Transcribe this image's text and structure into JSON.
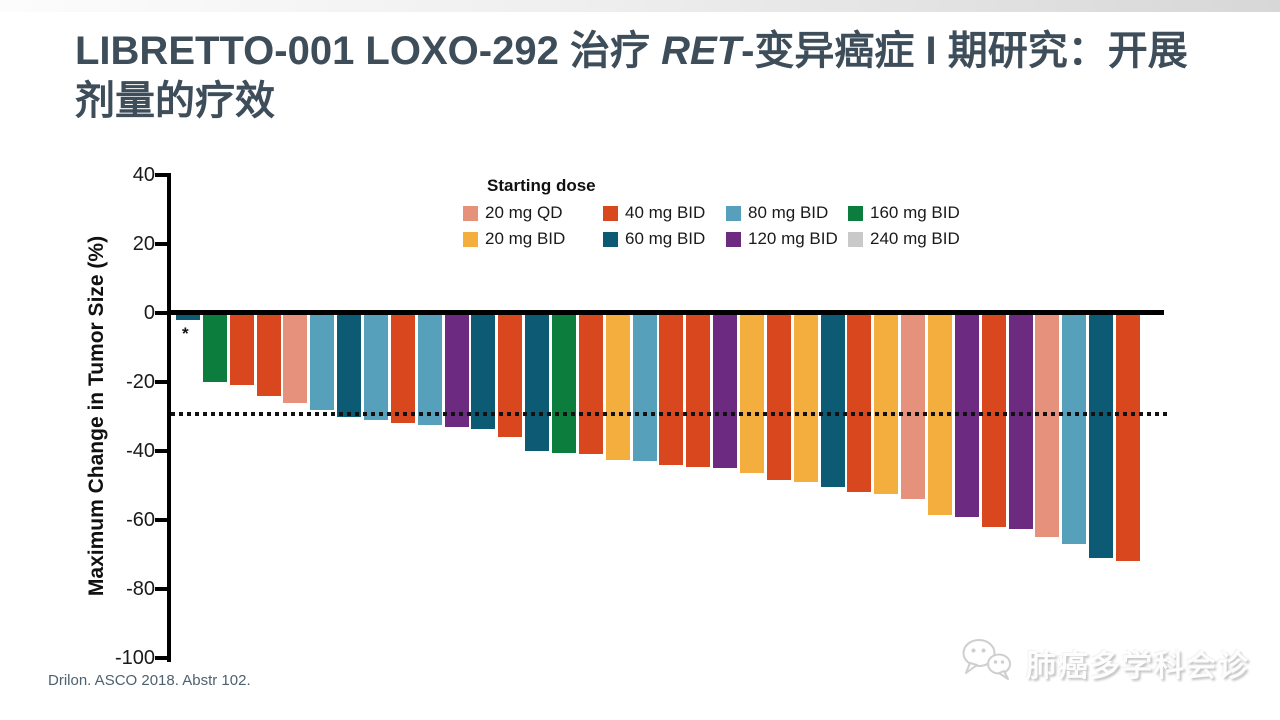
{
  "slide": {
    "title": {
      "prefix": "LIBRETTO-001 LOXO-292 治疗 ",
      "italic": "RET",
      "suffix": "-变异癌症 I 期研究：开展剂量的疗效"
    },
    "citation": "Drilon. ASCO 2018. Abstr 102.",
    "watermark": {
      "icon": "wechat-icon",
      "text": "肺癌多学科会诊"
    }
  },
  "chart_data": {
    "type": "bar",
    "subtype": "waterfall",
    "title": "",
    "xlabel": "",
    "ylabel": "Maximum Change in Tumor Size (%)",
    "ylim": [
      -100,
      40
    ],
    "yticks": [
      40,
      20,
      0,
      -20,
      -40,
      -60,
      -80,
      -100
    ],
    "reference_line_y": -30,
    "grid": false,
    "legend": {
      "title": "Starting dose",
      "position": "top",
      "order": [
        "20qd",
        "40",
        "80",
        "160",
        "20bid",
        "60",
        "120",
        "240"
      ]
    },
    "doses": {
      "20qd": {
        "label": "20 mg QD",
        "color": "#e5917c"
      },
      "20bid": {
        "label": "20 mg BID",
        "color": "#f3ae3d"
      },
      "40": {
        "label": "40 mg BID",
        "color": "#d9471e"
      },
      "60": {
        "label": "60 mg BID",
        "color": "#0d5a75"
      },
      "80": {
        "label": "80 mg BID",
        "color": "#57a0bc"
      },
      "120": {
        "label": "120 mg BID",
        "color": "#6c2b80"
      },
      "160": {
        "label": "160 mg BID",
        "color": "#0d7d3e"
      },
      "240": {
        "label": "240 mg BID",
        "color": "#c9c9c9"
      }
    },
    "bars": [
      {
        "dose": "60",
        "value": -2,
        "annotation": "*"
      },
      {
        "dose": "160",
        "value": -20
      },
      {
        "dose": "40",
        "value": -21
      },
      {
        "dose": "40",
        "value": -24
      },
      {
        "dose": "20qd",
        "value": -26
      },
      {
        "dose": "80",
        "value": -28
      },
      {
        "dose": "60",
        "value": -30
      },
      {
        "dose": "80",
        "value": -31
      },
      {
        "dose": "40",
        "value": -32
      },
      {
        "dose": "80",
        "value": -32.5
      },
      {
        "dose": "120",
        "value": -33
      },
      {
        "dose": "60",
        "value": -33.5
      },
      {
        "dose": "40",
        "value": -36
      },
      {
        "dose": "60",
        "value": -40
      },
      {
        "dose": "160",
        "value": -40.5
      },
      {
        "dose": "40",
        "value": -41
      },
      {
        "dose": "20bid",
        "value": -42.5
      },
      {
        "dose": "80",
        "value": -43
      },
      {
        "dose": "40",
        "value": -44
      },
      {
        "dose": "40",
        "value": -44.5
      },
      {
        "dose": "120",
        "value": -45
      },
      {
        "dose": "20bid",
        "value": -46.5
      },
      {
        "dose": "40",
        "value": -48.5
      },
      {
        "dose": "20bid",
        "value": -49
      },
      {
        "dose": "60",
        "value": -50.5
      },
      {
        "dose": "40",
        "value": -52
      },
      {
        "dose": "20bid",
        "value": -52.5
      },
      {
        "dose": "20qd",
        "value": -54
      },
      {
        "dose": "20bid",
        "value": -58.5
      },
      {
        "dose": "120",
        "value": -59
      },
      {
        "dose": "40",
        "value": -62
      },
      {
        "dose": "120",
        "value": -62.5
      },
      {
        "dose": "20qd",
        "value": -65
      },
      {
        "dose": "80",
        "value": -67
      },
      {
        "dose": "60",
        "value": -71
      },
      {
        "dose": "40",
        "value": -72
      }
    ]
  }
}
